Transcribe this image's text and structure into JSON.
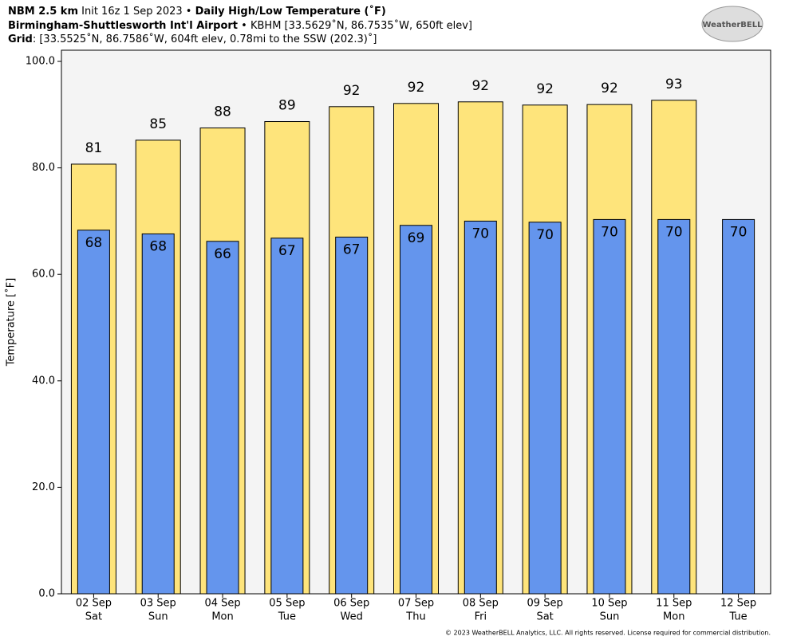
{
  "chart_data": {
    "type": "bar",
    "model": "NBM 2.5 km",
    "init": "Init 16z 1 Sep 2023 •",
    "title": "Daily High/Low Temperature (˚F)",
    "station": "Birmingham-Shuttlesworth Int'l Airport",
    "station_info": "• KBHM [33.5629˚N, 86.7535˚W, 650ft elev]",
    "grid_label": "Grid",
    "grid_info": ": [33.5525˚N, 86.7586˚W, 604ft elev, 0.78mi to the SSW (202.3)˚]",
    "logo_text": "WeatherBELL",
    "copyright": "© 2023 WeatherBELL Analytics, LLC. All rights reserved. License required for commercial distribution.",
    "ylabel": "Temperature [˚F]",
    "categories": [
      "02 Sep",
      "03 Sep",
      "04 Sep",
      "05 Sep",
      "06 Sep",
      "07 Sep",
      "08 Sep",
      "09 Sep",
      "10 Sep",
      "11 Sep",
      "12 Sep"
    ],
    "weekdays": [
      "Sat",
      "Sun",
      "Mon",
      "Tue",
      "Wed",
      "Thu",
      "Fri",
      "Sat",
      "Sun",
      "Mon",
      "Tue"
    ],
    "series": [
      {
        "name": "High",
        "color": "#fee47b",
        "values": [
          80.7,
          85.2,
          87.5,
          88.7,
          91.5,
          92.1,
          92.4,
          91.8,
          91.9,
          92.7,
          null
        ],
        "value_labels": [
          "81",
          "85",
          "88",
          "89",
          "92",
          "92",
          "92",
          "92",
          "92",
          "93",
          null
        ]
      },
      {
        "name": "Low",
        "color": "#6495ed",
        "values": [
          68.3,
          67.6,
          66.2,
          66.8,
          67.0,
          69.2,
          70.0,
          69.8,
          70.3,
          70.3,
          70.3
        ],
        "value_labels": [
          "68",
          "68",
          "66",
          "67",
          "67",
          "69",
          "70",
          "70",
          "70",
          "70",
          "70"
        ]
      }
    ],
    "ylim": [
      0,
      102.1
    ],
    "yticks": [
      {
        "value": 0,
        "label": "0.0"
      },
      {
        "value": 20,
        "label": "20.0"
      },
      {
        "value": 40,
        "label": "40.0"
      },
      {
        "value": 60,
        "label": "60.0"
      },
      {
        "value": 80,
        "label": "80.0"
      },
      {
        "value": 100,
        "label": "100.0"
      }
    ]
  }
}
